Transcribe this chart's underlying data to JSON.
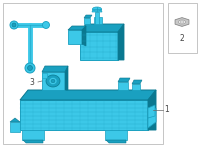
{
  "bg_color": "#ffffff",
  "part_color": "#3cc8e8",
  "part_color_dark": "#1aa0c0",
  "part_color_darker": "#0a7890",
  "border_color": "#bbbbbb",
  "text_color": "#444444",
  "line_color": "#666666",
  "label1": "1",
  "label2": "2",
  "label3": "3",
  "figsize": [
    2.0,
    1.47
  ],
  "dpi": 100
}
